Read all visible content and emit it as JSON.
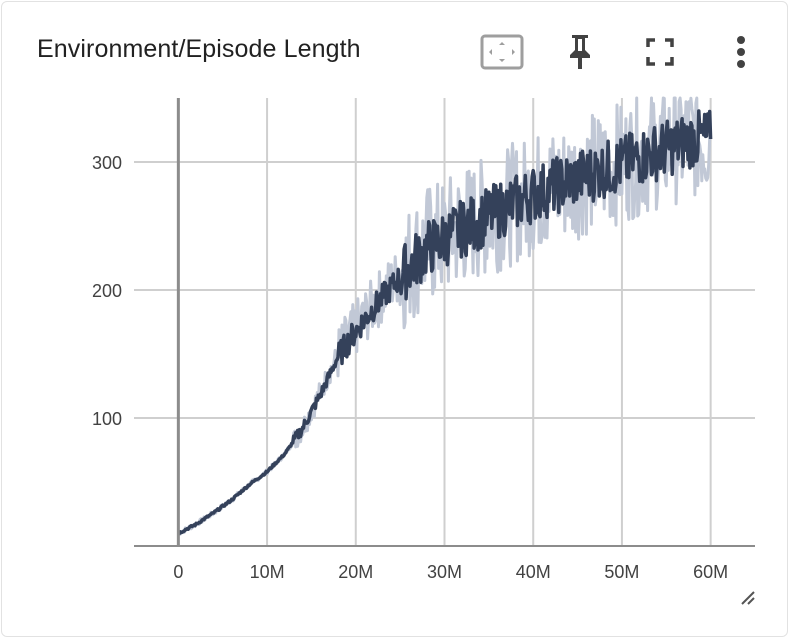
{
  "card": {
    "title": "Environment/Episode Length",
    "icons": {
      "fit": "fit-to-domain-icon",
      "pin": "pin-icon",
      "fullscreen": "fullscreen-icon",
      "more": "more-vert-icon",
      "resize": "resize-handle-icon"
    }
  },
  "colors": {
    "smoothed_line": "#34415a",
    "raw_line": "#c1c8d6",
    "grid": "#cfcfcf",
    "axis": "#8c8c8c"
  },
  "chart_data": {
    "type": "line",
    "title": "Environment/Episode Length",
    "xlabel": "",
    "ylabel": "",
    "xlim": [
      -5000000,
      65000000
    ],
    "ylim": [
      0,
      350
    ],
    "x_ticks": [
      0,
      10000000,
      20000000,
      30000000,
      40000000,
      50000000,
      60000000
    ],
    "x_tick_labels": [
      "0",
      "10M",
      "20M",
      "30M",
      "40M",
      "50M",
      "60M"
    ],
    "y_ticks": [
      100,
      200,
      300
    ],
    "y_tick_labels": [
      "100",
      "200",
      "300"
    ],
    "grid": true,
    "series": [
      {
        "role": "raw",
        "x": [
          0,
          2000000,
          4000000,
          6000000,
          8000000,
          10000000,
          12000000,
          14000000,
          16000000,
          18000000,
          20000000,
          22000000,
          24000000,
          26000000,
          28000000,
          30000000,
          32000000,
          34000000,
          36000000,
          38000000,
          40000000,
          42000000,
          44000000,
          46000000,
          48000000,
          50000000,
          52000000,
          54000000,
          56000000,
          58000000,
          60000000
        ],
        "y": [
          10,
          17,
          26,
          36,
          48,
          58,
          72,
          92,
          120,
          150,
          170,
          188,
          205,
          220,
          235,
          240,
          250,
          255,
          262,
          268,
          275,
          280,
          285,
          290,
          295,
          300,
          305,
          310,
          315,
          318,
          320
        ]
      },
      {
        "role": "smoothed",
        "x": [
          0,
          2000000,
          4000000,
          6000000,
          8000000,
          10000000,
          12000000,
          14000000,
          16000000,
          18000000,
          20000000,
          22000000,
          24000000,
          26000000,
          28000000,
          30000000,
          32000000,
          34000000,
          36000000,
          38000000,
          40000000,
          42000000,
          44000000,
          46000000,
          48000000,
          50000000,
          52000000,
          54000000,
          56000000,
          58000000,
          60000000
        ],
        "y": [
          10,
          17,
          26,
          36,
          48,
          58,
          72,
          92,
          118,
          148,
          168,
          186,
          202,
          218,
          232,
          240,
          248,
          254,
          262,
          268,
          275,
          280,
          285,
          290,
          294,
          298,
          304,
          308,
          313,
          318,
          318
        ]
      }
    ]
  }
}
